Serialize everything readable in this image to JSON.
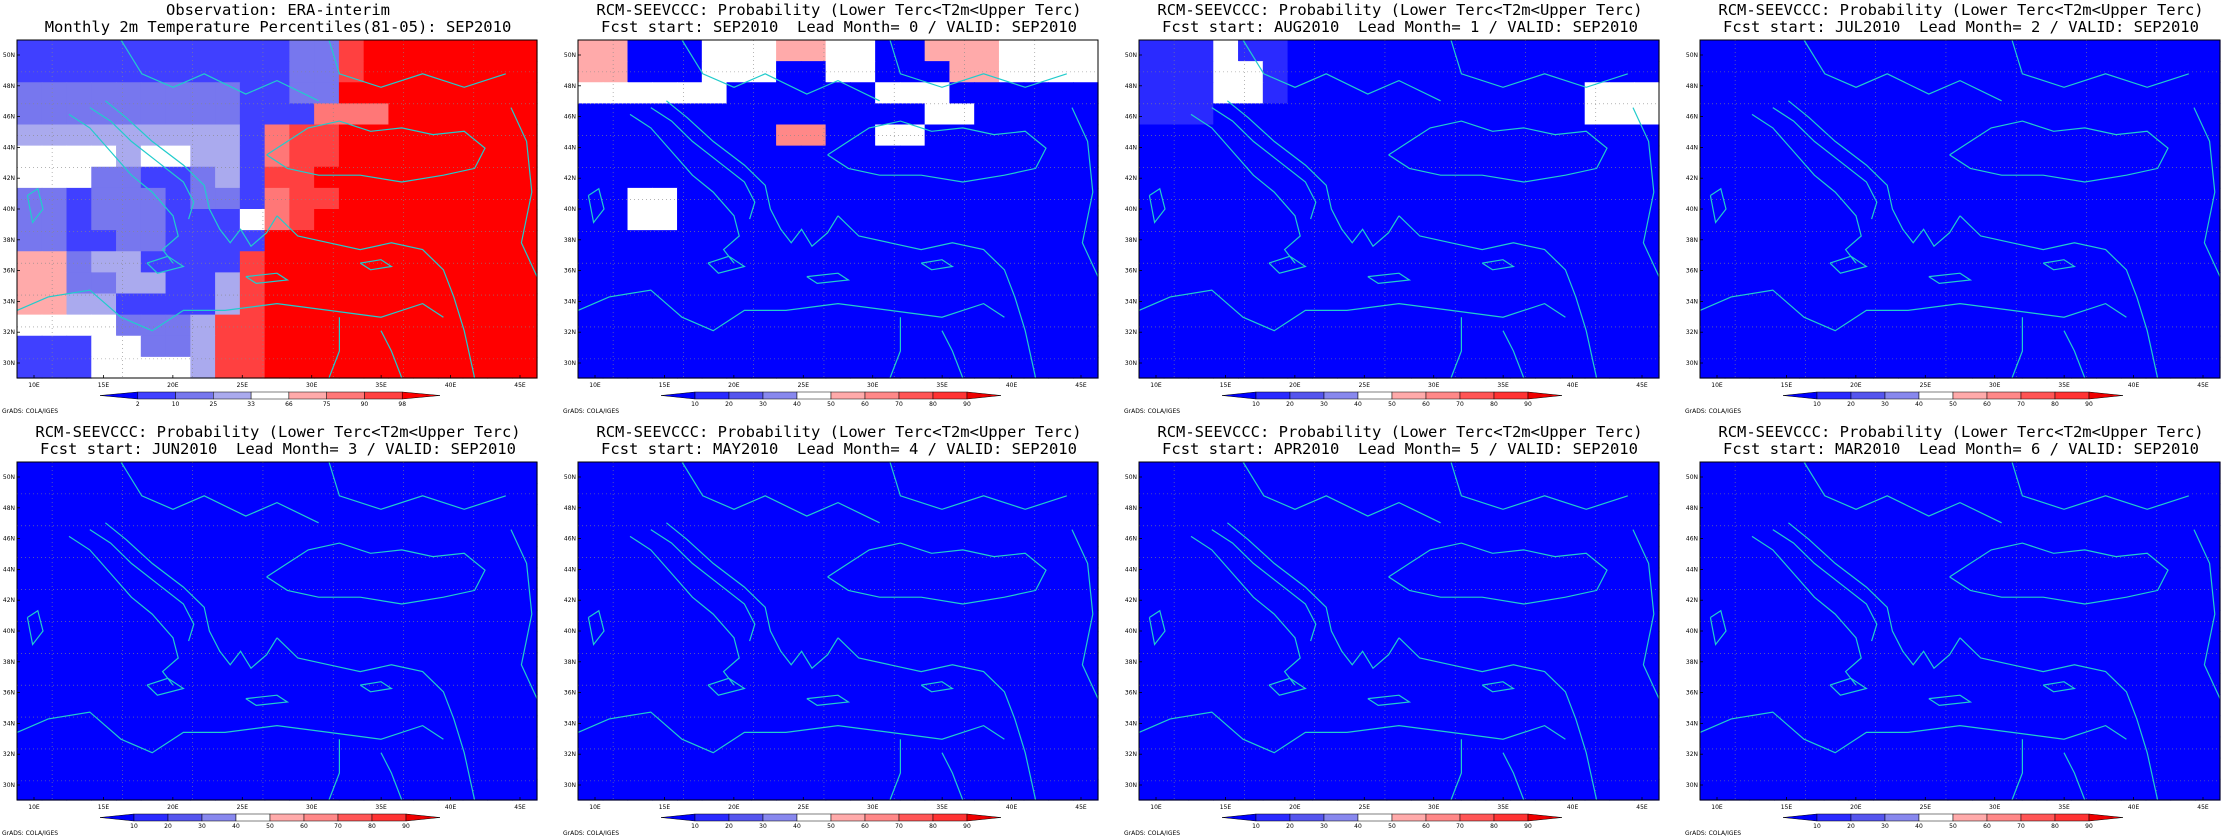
{
  "colors": {
    "ocean": "#1a1aff",
    "coast": "#22cccc",
    "obs_scale": [
      "#0000ff",
      "#4040ff",
      "#7777ee",
      "#aaaaee",
      "#ffffff",
      "#ffaaaa",
      "#ff7777",
      "#ff4040",
      "#ff0000"
    ],
    "fc_scale": [
      "#0000ff",
      "#2a2aff",
      "#5555ee",
      "#8888ee",
      "#ffffff",
      "#ffaaaa",
      "#ff8888",
      "#ff5555",
      "#ff3333",
      "#ee0000"
    ]
  },
  "icon": "coastline-map",
  "credit": "GrADS: COLA/IGES",
  "x_ticks": [
    "10E",
    "15E",
    "20E",
    "25E",
    "30E",
    "35E",
    "40E",
    "45E"
  ],
  "y_ticks": [
    "50N",
    "48N",
    "46N",
    "44N",
    "42N",
    "40N",
    "38N",
    "36N",
    "34N",
    "32N",
    "30N"
  ],
  "panels": [
    {
      "title1": "Observation: ERA-interim",
      "title2": "Monthly 2m Temperature Percentiles(81-05): SEP2010",
      "colorbar_labels": [
        "2",
        "10",
        "25",
        "33",
        "66",
        "75",
        "90",
        "98"
      ],
      "scale": "obs",
      "grid": [
        "111111111112278888888",
        "111111111112278888888",
        "222222222112288888888",
        "222222222111666888888",
        "333333333167788888888",
        "444434433167788888888",
        "444221123177888888888",
        "221222122167788888888",
        "221222111467888888888",
        "221122111188888888888",
        "552331111788888888888",
        "552233113788888888888",
        "553311113788888888888",
        "444422237788888888888",
        "111442237788888888888",
        "111444437788888888888"
      ]
    },
    {
      "title1": "RCM-SEEVCCC: Probability (Lower Terc<T2m<Upper Terc)",
      "title2": "Fcst start: SEP2010  Lead Month= 0 / VALID: SEP2010",
      "colorbar_labels": [
        "10",
        "20",
        "30",
        "40",
        "50",
        "60",
        "70",
        "80",
        "90"
      ],
      "scale": "fc",
      "grid": [
        "550004445544005554444",
        "550004440044000554444",
        "444444000000444000000",
        "000000000000004400000",
        "000000006600440000000",
        "000000000000000000000",
        "000000000000000000000",
        "004400000000000000000",
        "004400000000000000000",
        "000000000000000000000",
        "000000000000000000000",
        "000000000000000000000",
        "000000000000000000000",
        "000000000000000000000",
        "000000000000000000000",
        "000000000000000000000"
      ]
    },
    {
      "title1": "RCM-SEEVCCC: Probability (Lower Terc<T2m<Upper Terc)",
      "title2": "Fcst start: AUG2010  Lead Month= 1 / VALID: SEP2010",
      "colorbar_labels": [
        "10",
        "20",
        "30",
        "40",
        "50",
        "60",
        "70",
        "80",
        "90"
      ],
      "scale": "fc",
      "grid": [
        "111411000000000000000",
        "111441000000000000000",
        "111441000000000000444",
        "111000000000000000444",
        "000000000000000000000",
        "000000000000000000000",
        "000000000000000000000",
        "000000000000000000000",
        "000000000000000000000",
        "000000000000000000000",
        "000000000000000000000",
        "000000000000000000000",
        "000000000000000000000",
        "000000000000000000000",
        "000000000000000000000",
        "000000000000000000000"
      ]
    },
    {
      "title1": "RCM-SEEVCCC: Probability (Lower Terc<T2m<Upper Terc)",
      "title2": "Fcst start: JUL2010  Lead Month= 2 / VALID: SEP2010",
      "colorbar_labels": [
        "10",
        "20",
        "30",
        "40",
        "50",
        "60",
        "70",
        "80",
        "90"
      ],
      "scale": "fc",
      "grid": [
        "000000000000000000000",
        "000000000000000000000",
        "000000000000000000000",
        "000000000000000000000",
        "000000000000000000000",
        "000000000000000000000",
        "000000000000000000000",
        "000000000000000000000",
        "000000000000000000000",
        "000000000000000000000",
        "000000000000000000000",
        "000000000000000000000",
        "000000000000000000000",
        "000000000000000000000",
        "000000000000000000000",
        "000000000000000000000"
      ]
    },
    {
      "title1": "RCM-SEEVCCC: Probability (Lower Terc<T2m<Upper Terc)",
      "title2": "Fcst start: JUN2010  Lead Month= 3 / VALID: SEP2010",
      "colorbar_labels": [
        "10",
        "20",
        "30",
        "40",
        "50",
        "60",
        "70",
        "80",
        "90"
      ],
      "scale": "fc",
      "grid": [
        "000000000000000000000",
        "000000000000000000000",
        "000000000000000000000",
        "000000000000000000000",
        "000000000000000000000",
        "000000000000000000000",
        "000000000000000000000",
        "000000000000000000000",
        "000000000000000000000",
        "000000000000000000000",
        "000000000000000000000",
        "000000000000000000000",
        "000000000000000000000",
        "000000000000000000000",
        "000000000000000000000",
        "000000000000000000000"
      ]
    },
    {
      "title1": "RCM-SEEVCCC: Probability (Lower Terc<T2m<Upper Terc)",
      "title2": "Fcst start: MAY2010  Lead Month= 4 / VALID: SEP2010",
      "colorbar_labels": [
        "10",
        "20",
        "30",
        "40",
        "50",
        "60",
        "70",
        "80",
        "90"
      ],
      "scale": "fc",
      "grid": [
        "000000000000000000000",
        "000000000000000000000",
        "000000000000000000000",
        "000000000000000000000",
        "000000000000000000000",
        "000000000000000000000",
        "000000000000000000000",
        "000000000000000000000",
        "000000000000000000000",
        "000000000000000000000",
        "000000000000000000000",
        "000000000000000000000",
        "000000000000000000000",
        "000000000000000000000",
        "000000000000000000000",
        "000000000000000000000"
      ]
    },
    {
      "title1": "RCM-SEEVCCC: Probability (Lower Terc<T2m<Upper Terc)",
      "title2": "Fcst start: APR2010  Lead Month= 5 / VALID: SEP2010",
      "colorbar_labels": [
        "10",
        "20",
        "30",
        "40",
        "50",
        "60",
        "70",
        "80",
        "90"
      ],
      "scale": "fc",
      "grid": [
        "000000000000000000000",
        "000000000000000000000",
        "000000000000000000000",
        "000000000000000000000",
        "000000000000000000000",
        "000000000000000000000",
        "000000000000000000000",
        "000000000000000000000",
        "000000000000000000000",
        "000000000000000000000",
        "000000000000000000000",
        "000000000000000000000",
        "000000000000000000000",
        "000000000000000000000",
        "000000000000000000000",
        "000000000000000000000"
      ]
    },
    {
      "title1": "RCM-SEEVCCC: Probability (Lower Terc<T2m<Upper Terc)",
      "title2": "Fcst start: MAR2010  Lead Month= 6 / VALID: SEP2010",
      "colorbar_labels": [
        "10",
        "20",
        "30",
        "40",
        "50",
        "60",
        "70",
        "80",
        "90"
      ],
      "scale": "fc",
      "grid": [
        "000000000000000000000",
        "000000000000000000000",
        "000000000000000000000",
        "000000000000000000000",
        "000000000000000000000",
        "000000000000000000000",
        "000000000000000000000",
        "000000000000000000000",
        "000000000000000000000",
        "000000000000000000000",
        "000000000000000000000",
        "000000000000000000000",
        "000000000000000000000",
        "000000000000000000000",
        "000000000000000000000",
        "000000000000000000000"
      ]
    }
  ]
}
